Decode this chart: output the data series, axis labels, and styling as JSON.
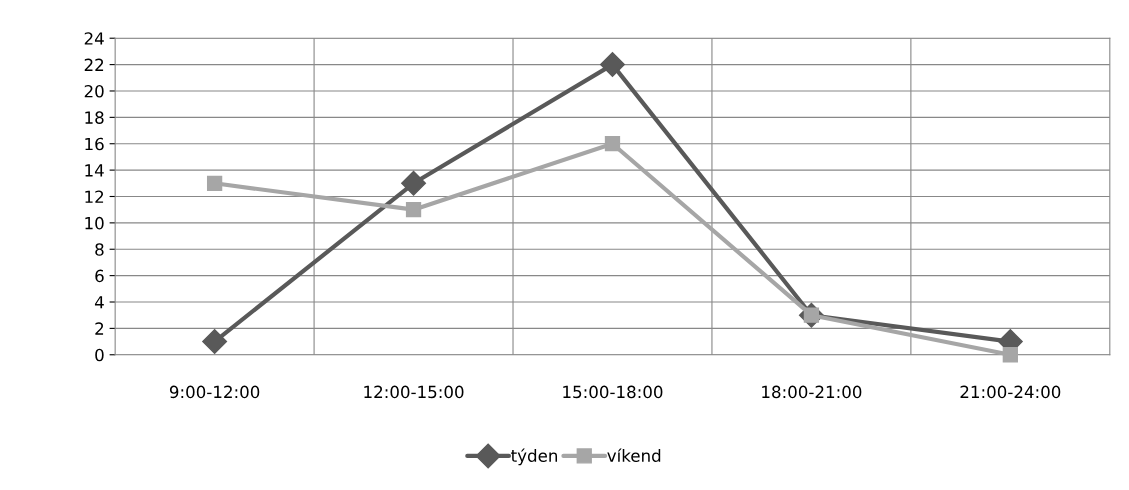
{
  "chart_data": {
    "type": "line",
    "categories": [
      "9:00-12:00",
      "12:00-15:00",
      "15:00-18:00",
      "18:00-21:00",
      "21:00-24:00"
    ],
    "series": [
      {
        "name": "týden",
        "color": "#595959",
        "values": [
          1,
          13,
          22,
          3,
          1
        ],
        "marker": "diamond"
      },
      {
        "name": "víkend",
        "color": "#a6a6a6",
        "values": [
          13,
          11,
          16,
          3,
          0
        ],
        "marker": "square"
      }
    ],
    "ylim": [
      0,
      24
    ],
    "yticks": [
      0,
      2,
      4,
      6,
      8,
      10,
      12,
      14,
      16,
      18,
      20,
      22,
      24
    ],
    "grid": true,
    "legend": "bottom",
    "line_style": "solid"
  }
}
